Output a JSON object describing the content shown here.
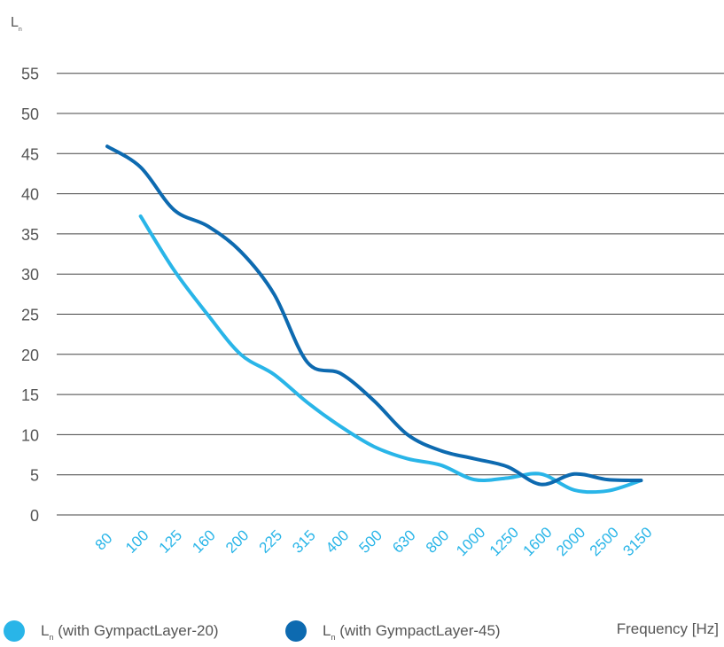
{
  "chart_data": {
    "type": "line",
    "ylabel_main": "L",
    "ylabel_sub": "n",
    "xlabel": "Frequency [Hz]",
    "yticks": [
      0,
      5,
      10,
      15,
      20,
      25,
      30,
      35,
      40,
      45,
      50,
      55
    ],
    "ylim": [
      0,
      55
    ],
    "categories": [
      "80",
      "100",
      "125",
      "160",
      "200",
      "225",
      "315",
      "400",
      "500",
      "630",
      "800",
      "1000",
      "1250",
      "1600",
      "2000",
      "2500",
      "3150"
    ],
    "grid": true,
    "legend_position": "bottom",
    "colors": {
      "axis_text": "#555555",
      "tick_x": "#29b5e8",
      "grid": "#444444"
    },
    "series": [
      {
        "name_main": "L",
        "name_sub": "n",
        "name_rest": " (with GympactLayer-20)",
        "color": "#29b5e8",
        "values": [
          null,
          37.2,
          30.5,
          25.0,
          20.0,
          17.5,
          14.0,
          11.0,
          8.5,
          7.0,
          6.2,
          4.4,
          4.6,
          5.1,
          3.1,
          3.0,
          4.3
        ]
      },
      {
        "name_main": "L",
        "name_sub": "n",
        "name_rest": " (with GympactLayer-45)",
        "color": "#0d6ab0",
        "values": [
          45.9,
          43.3,
          38.0,
          36.0,
          32.8,
          27.5,
          19.0,
          17.6,
          14.2,
          10.0,
          8.0,
          7.0,
          6.0,
          3.8,
          5.1,
          4.4,
          4.3
        ]
      }
    ]
  }
}
